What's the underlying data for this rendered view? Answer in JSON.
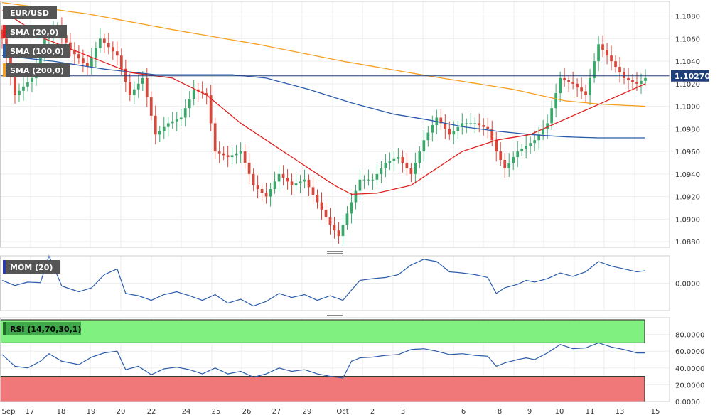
{
  "chart_data": [
    {
      "type": "candlestick",
      "pair": "EUR/USD",
      "ylim": [
        1.0875,
        1.1093
      ],
      "yticks": [
        "1.1080",
        "1.1060",
        "1.1040",
        "1.1020",
        "1.1000",
        "1.0980",
        "1.0960",
        "1.0940",
        "1.0920",
        "1.0900",
        "1.0880"
      ],
      "last_price": 1.1027,
      "last_price_label": "1.10270",
      "x_labels": [
        "Sep",
        "17",
        "18",
        "19",
        "20",
        "22",
        "24",
        "25",
        "26",
        "27",
        "29",
        "Oct",
        "2",
        "3",
        "6",
        "8",
        "9",
        "10",
        "11",
        "13",
        "15"
      ],
      "overlays": [
        {
          "name": "SMA (20,0)",
          "color": "#e02020"
        },
        {
          "name": "SMA (100,0)",
          "color": "#2a5caa"
        },
        {
          "name": "SMA (200,0)",
          "color": "#f5a020"
        }
      ],
      "candle_colors": {
        "up": "#3aa86b",
        "down": "#d9473a"
      },
      "anchors": {
        "close": [
          [
            0,
            1.106
          ],
          [
            3,
            1.101
          ],
          [
            7,
            1.1025
          ],
          [
            10,
            1.106
          ],
          [
            13,
            1.107
          ],
          [
            16,
            1.105
          ],
          [
            20,
            1.1035
          ],
          [
            23,
            1.106
          ],
          [
            27,
            1.1045
          ],
          [
            30,
            1.101
          ],
          [
            33,
            1.1025
          ],
          [
            36,
            1.0975
          ],
          [
            39,
            1.0985
          ],
          [
            42,
            1.099
          ],
          [
            45,
            1.1015
          ],
          [
            48,
            1.101
          ],
          [
            50,
            1.096
          ],
          [
            53,
            1.0955
          ],
          [
            56,
            1.096
          ],
          [
            59,
            1.093
          ],
          [
            62,
            1.092
          ],
          [
            65,
            1.094
          ],
          [
            68,
            1.093
          ],
          [
            71,
            1.0935
          ],
          [
            74,
            1.0915
          ],
          [
            77,
            1.0895
          ],
          [
            79,
            1.0885
          ],
          [
            81,
            1.0905
          ],
          [
            84,
            1.0935
          ],
          [
            87,
            1.0935
          ],
          [
            90,
            1.095
          ],
          [
            93,
            1.0955
          ],
          [
            96,
            1.094
          ],
          [
            99,
            1.097
          ],
          [
            102,
            1.099
          ],
          [
            105,
            1.0975
          ],
          [
            108,
            1.0985
          ],
          [
            111,
            1.0985
          ],
          [
            114,
            1.098
          ],
          [
            116,
            1.096
          ],
          [
            118,
            1.0945
          ],
          [
            121,
            1.096
          ],
          [
            123,
            1.0965
          ],
          [
            125,
            1.097
          ],
          [
            128,
            1.0985
          ],
          [
            131,
            1.1025
          ],
          [
            134,
            1.102
          ],
          [
            137,
            1.101
          ],
          [
            140,
            1.1055
          ],
          [
            143,
            1.104
          ],
          [
            146,
            1.1025
          ],
          [
            149,
            1.102
          ],
          [
            151,
            1.1025
          ]
        ],
        "sma20": [
          [
            0,
            1.1085
          ],
          [
            10,
            1.106
          ],
          [
            20,
            1.1045
          ],
          [
            30,
            1.103
          ],
          [
            40,
            1.1025
          ],
          [
            48,
            1.101
          ],
          [
            56,
            1.0985
          ],
          [
            64,
            1.0965
          ],
          [
            72,
            1.0945
          ],
          [
            78,
            1.093
          ],
          [
            82,
            1.0922
          ],
          [
            88,
            1.0923
          ],
          [
            96,
            1.093
          ],
          [
            102,
            1.0945
          ],
          [
            108,
            1.096
          ],
          [
            116,
            1.097
          ],
          [
            124,
            1.0975
          ],
          [
            130,
            1.0985
          ],
          [
            136,
            1.0995
          ],
          [
            142,
            1.1005
          ],
          [
            148,
            1.1015
          ],
          [
            151,
            1.102
          ]
        ],
        "sma100": [
          [
            0,
            1.1045
          ],
          [
            12,
            1.104
          ],
          [
            24,
            1.1033
          ],
          [
            36,
            1.1028
          ],
          [
            46,
            1.1028
          ],
          [
            54,
            1.1028
          ],
          [
            62,
            1.1025
          ],
          [
            72,
            1.1015
          ],
          [
            82,
            1.1003
          ],
          [
            92,
            1.0993
          ],
          [
            100,
            1.0988
          ],
          [
            108,
            1.0982
          ],
          [
            116,
            1.0978
          ],
          [
            124,
            1.0975
          ],
          [
            132,
            1.0973
          ],
          [
            140,
            1.0972
          ],
          [
            148,
            1.0972
          ],
          [
            151,
            1.0972
          ]
        ],
        "sma200": [
          [
            0,
            1.1092
          ],
          [
            20,
            1.1082
          ],
          [
            40,
            1.1068
          ],
          [
            60,
            1.1055
          ],
          [
            80,
            1.104
          ],
          [
            100,
            1.1027
          ],
          [
            120,
            1.1015
          ],
          [
            132,
            1.1005
          ],
          [
            140,
            1.1002
          ],
          [
            151,
            1.1
          ]
        ]
      }
    },
    {
      "type": "line",
      "name": "MOM (20)",
      "yticks": [
        "0.0000"
      ],
      "zero_value": 0,
      "ylim": [
        -0.0048,
        0.0048
      ],
      "color": "#2a5caa",
      "anchors": [
        [
          0,
          0.0005
        ],
        [
          3,
          -0.0004
        ],
        [
          6,
          0.0002
        ],
        [
          9,
          0.0001
        ],
        [
          11,
          0.0048
        ],
        [
          14,
          -0.0005
        ],
        [
          18,
          -0.0015
        ],
        [
          21,
          -0.0008
        ],
        [
          24,
          0.0015
        ],
        [
          27,
          0.0025
        ],
        [
          29,
          -0.0018
        ],
        [
          32,
          -0.0022
        ],
        [
          35,
          -0.003
        ],
        [
          38,
          -0.002
        ],
        [
          41,
          -0.0015
        ],
        [
          44,
          -0.0022
        ],
        [
          47,
          -0.003
        ],
        [
          50,
          -0.002
        ],
        [
          53,
          -0.0035
        ],
        [
          56,
          -0.0028
        ],
        [
          59,
          -0.004
        ],
        [
          62,
          -0.0032
        ],
        [
          65,
          -0.0018
        ],
        [
          68,
          -0.0025
        ],
        [
          71,
          -0.002
        ],
        [
          74,
          -0.003
        ],
        [
          77,
          -0.0022
        ],
        [
          80,
          -0.003
        ],
        [
          82,
          -0.0012
        ],
        [
          84,
          0.0005
        ],
        [
          87,
          0.0008
        ],
        [
          90,
          0.001
        ],
        [
          93,
          0.0015
        ],
        [
          96,
          0.0032
        ],
        [
          99,
          0.0042
        ],
        [
          102,
          0.0038
        ],
        [
          105,
          0.002
        ],
        [
          108,
          0.0018
        ],
        [
          111,
          0.0015
        ],
        [
          114,
          0.001
        ],
        [
          116,
          -0.0018
        ],
        [
          118,
          -0.0008
        ],
        [
          121,
          -0.0002
        ],
        [
          123,
          0.0005
        ],
        [
          125,
          0.0002
        ],
        [
          128,
          0.0008
        ],
        [
          131,
          0.0018
        ],
        [
          134,
          0.0012
        ],
        [
          137,
          0.002
        ],
        [
          140,
          0.0038
        ],
        [
          143,
          0.003
        ],
        [
          146,
          0.0025
        ],
        [
          149,
          0.002
        ],
        [
          151,
          0.0022
        ]
      ]
    },
    {
      "type": "line",
      "name": "RSI (14,70,30,1)",
      "yticks": [
        "80.0000",
        "60.0000",
        "40.0000",
        "20.0000",
        "0.0000"
      ],
      "ylim": [
        0,
        100
      ],
      "overbought": 70,
      "oversold": 30,
      "color": "#2a5caa",
      "band_colors": {
        "overbought": "#80f080",
        "oversold": "#f07878"
      },
      "anchors": [
        [
          0,
          56
        ],
        [
          3,
          42
        ],
        [
          6,
          40
        ],
        [
          9,
          48
        ],
        [
          11,
          57
        ],
        [
          14,
          48
        ],
        [
          18,
          44
        ],
        [
          21,
          53
        ],
        [
          24,
          58
        ],
        [
          27,
          60
        ],
        [
          29,
          38
        ],
        [
          32,
          42
        ],
        [
          35,
          32
        ],
        [
          38,
          39
        ],
        [
          41,
          41
        ],
        [
          44,
          38
        ],
        [
          47,
          33
        ],
        [
          50,
          40
        ],
        [
          53,
          33
        ],
        [
          56,
          36
        ],
        [
          59,
          29
        ],
        [
          62,
          33
        ],
        [
          65,
          40
        ],
        [
          68,
          36
        ],
        [
          71,
          38
        ],
        [
          74,
          33
        ],
        [
          77,
          30
        ],
        [
          80,
          28
        ],
        [
          82,
          48
        ],
        [
          84,
          52
        ],
        [
          87,
          53
        ],
        [
          90,
          55
        ],
        [
          93,
          56
        ],
        [
          96,
          62
        ],
        [
          99,
          63
        ],
        [
          102,
          60
        ],
        [
          105,
          56
        ],
        [
          108,
          57
        ],
        [
          111,
          55
        ],
        [
          114,
          54
        ],
        [
          116,
          42
        ],
        [
          118,
          46
        ],
        [
          121,
          50
        ],
        [
          123,
          52
        ],
        [
          125,
          50
        ],
        [
          128,
          58
        ],
        [
          131,
          68
        ],
        [
          134,
          63
        ],
        [
          137,
          64
        ],
        [
          140,
          70
        ],
        [
          143,
          65
        ],
        [
          146,
          62
        ],
        [
          149,
          58
        ],
        [
          151,
          58
        ]
      ]
    }
  ]
}
